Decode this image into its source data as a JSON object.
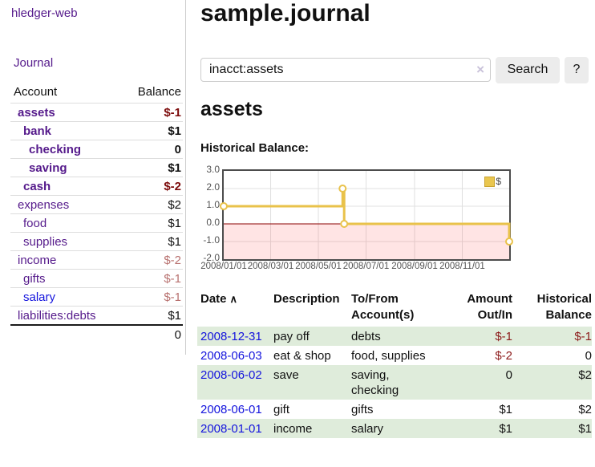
{
  "sidebar": {
    "brand": "hledger-web",
    "nav": {
      "journal": "Journal"
    },
    "accounts_table": {
      "headers": {
        "account": "Account",
        "balance": "Balance"
      },
      "rows": [
        {
          "name": "assets",
          "balance": "$-1",
          "depth": 1,
          "bold": true,
          "neg": "strong",
          "link": "purple"
        },
        {
          "name": "bank",
          "balance": "$1",
          "depth": 2,
          "bold": true,
          "neg": "",
          "link": "purple"
        },
        {
          "name": "checking",
          "balance": "0",
          "depth": 3,
          "bold": true,
          "neg": "",
          "link": "purple"
        },
        {
          "name": "saving",
          "balance": "$1",
          "depth": 3,
          "bold": true,
          "neg": "",
          "link": "purple"
        },
        {
          "name": "cash",
          "balance": "$-2",
          "depth": 2,
          "bold": true,
          "neg": "strong",
          "link": "purple"
        },
        {
          "name": "expenses",
          "balance": "$2",
          "depth": 1,
          "bold": false,
          "neg": "",
          "link": "purple"
        },
        {
          "name": "food",
          "balance": "$1",
          "depth": 2,
          "bold": false,
          "neg": "",
          "link": "purple"
        },
        {
          "name": "supplies",
          "balance": "$1",
          "depth": 2,
          "bold": false,
          "neg": "",
          "link": "purple"
        },
        {
          "name": "income",
          "balance": "$-2",
          "depth": 1,
          "bold": false,
          "neg": "soft",
          "link": "purple"
        },
        {
          "name": "gifts",
          "balance": "$-1",
          "depth": 2,
          "bold": false,
          "neg": "soft",
          "link": "purple"
        },
        {
          "name": "salary",
          "balance": "$-1",
          "depth": 2,
          "bold": false,
          "neg": "soft",
          "link": "blue"
        },
        {
          "name": "liabilities:debts",
          "balance": "$1",
          "depth": 1,
          "bold": false,
          "neg": "",
          "link": "purple"
        }
      ],
      "total": "0"
    }
  },
  "header": {
    "title": "sample.journal"
  },
  "search": {
    "query": "inacct:assets",
    "clear_icon": "×",
    "search_label": "Search",
    "help_label": "?"
  },
  "account_page": {
    "title": "assets",
    "chart_label": "Historical Balance:"
  },
  "chart_data": {
    "type": "line",
    "title": "Historical Balance:",
    "steps": true,
    "x_start": "2008-01-01",
    "x_span_days": 365,
    "ylim": [
      -2.0,
      3.0
    ],
    "y_ticks": [
      3.0,
      2.0,
      1.0,
      0.0,
      -1.0,
      -2.0
    ],
    "x_ticks": [
      "2008/01/01",
      "2008/03/01",
      "2008/05/01",
      "2008/07/01",
      "2008/09/01",
      "2008/11/01"
    ],
    "series": [
      {
        "name": "$",
        "color": "#e9c24a",
        "points": [
          {
            "date": "2008-01-01",
            "value": 1.0
          },
          {
            "date": "2008-06-01",
            "value": 2.0
          },
          {
            "date": "2008-06-03",
            "value": 0.0
          },
          {
            "date": "2008-12-31",
            "value": -1.0
          }
        ]
      }
    ],
    "negative_region_color": "rgba(255,64,64,0.14)",
    "zero_line_color": "#8b0000",
    "grid": true,
    "legend_position": "top-right"
  },
  "register": {
    "headers": {
      "date": "Date",
      "sort_icon": "∧",
      "description": "Description",
      "accounts": "To/From Account(s)",
      "amount": "Amount Out/In",
      "balance": "Historical Balance"
    },
    "rows": [
      {
        "date": "2008-12-31",
        "description": "pay off",
        "accounts": "debts",
        "amount": "$-1",
        "balance": "$-1",
        "amount_neg": true,
        "balance_neg": true
      },
      {
        "date": "2008-06-03",
        "description": "eat & shop",
        "accounts": "food, supplies",
        "amount": "$-2",
        "balance": "0",
        "amount_neg": true,
        "balance_neg": false
      },
      {
        "date": "2008-06-02",
        "description": "save",
        "accounts": "saving, checking",
        "amount": "0",
        "balance": "$2",
        "amount_neg": false,
        "balance_neg": false
      },
      {
        "date": "2008-06-01",
        "description": "gift",
        "accounts": "gifts",
        "amount": "$1",
        "balance": "$2",
        "amount_neg": false,
        "balance_neg": false
      },
      {
        "date": "2008-01-01",
        "description": "income",
        "accounts": "salary",
        "amount": "$1",
        "balance": "$1",
        "amount_neg": false,
        "balance_neg": false
      }
    ]
  }
}
